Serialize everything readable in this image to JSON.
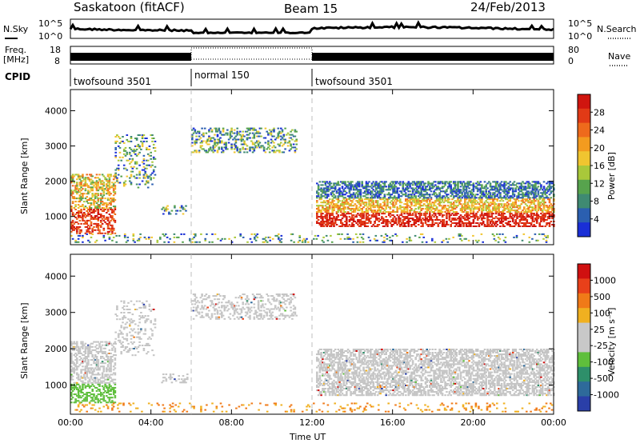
{
  "header": {
    "radar": "Saskatoon (fitACF)",
    "beam": "Beam 15",
    "date": "24/Feb/2013"
  },
  "labels": {
    "nsky": "N.Sky",
    "nsearch": "N.Search",
    "freq": "Freq.",
    "mhz": "[MHz]",
    "nave": "Nave",
    "cpid": "CPID"
  },
  "colors": {
    "power_scale": [
      "#1a2fd6",
      "#2b5fb0",
      "#3f8a72",
      "#57a34d",
      "#a9c83a",
      "#f0c530",
      "#f39b1f",
      "#ee6a1c",
      "#e13a16",
      "#d0150f"
    ],
    "velocity_scale": [
      "#2a3fa8",
      "#2e6a9a",
      "#2e8f6a",
      "#5fbf3c",
      "#c8c8c8",
      "#c8c8c8",
      "#f0b020",
      "#f07a18",
      "#e8401a",
      "#d01010"
    ],
    "dashed_line": "#bfbfbf"
  },
  "chart_data": [
    {
      "type": "line",
      "name_left": "N.Sky",
      "name_right": "N.Search",
      "x_range_hours": [
        0,
        24
      ],
      "yticks_left": [
        "10^5",
        "10^0"
      ],
      "yticks_right": [
        "10^5",
        "10^0"
      ]
    },
    {
      "type": "line",
      "ylabel": "Freq. [MHz]",
      "yticks_left": [
        "18",
        "8"
      ],
      "yticks_right": [
        "80",
        "0"
      ],
      "ylabel_right": "Nave",
      "normal_mode_range": [
        6,
        12
      ]
    },
    {
      "type": "table",
      "name": "CPID",
      "segments": [
        {
          "label": "twofsound 3501",
          "start_hour": 0,
          "end_hour": 6
        },
        {
          "label": "normal 150",
          "start_hour": 6,
          "end_hour": 12
        },
        {
          "label": "twofsound 3501",
          "start_hour": 12,
          "end_hour": 24
        }
      ]
    },
    {
      "type": "heatmap",
      "ylabel": "Slant Range [km]",
      "yticks": [
        "4000",
        "3000",
        "2000",
        "1000"
      ],
      "ylim": [
        200,
        4600
      ],
      "colorbar_label": "Power [dB]",
      "colorbar_ticks": [
        "28",
        "24",
        "20",
        "16",
        "12",
        "8",
        "4"
      ],
      "colorbar_range": [
        0,
        32
      ]
    },
    {
      "type": "heatmap",
      "ylabel": "Slant Range [km]",
      "yticks": [
        "4000",
        "3000",
        "2000",
        "1000"
      ],
      "ylim": [
        200,
        4600
      ],
      "xlabel": "Time UT",
      "xticks": [
        "00:00",
        "04:00",
        "08:00",
        "12:00",
        "16:00",
        "20:00",
        "00:00"
      ],
      "colorbar_label": "Velocity [m s⁻¹]",
      "colorbar_ticks": [
        "1000",
        "500",
        "100",
        "25",
        "-25",
        "-100",
        "-500",
        "-1000"
      ]
    }
  ]
}
